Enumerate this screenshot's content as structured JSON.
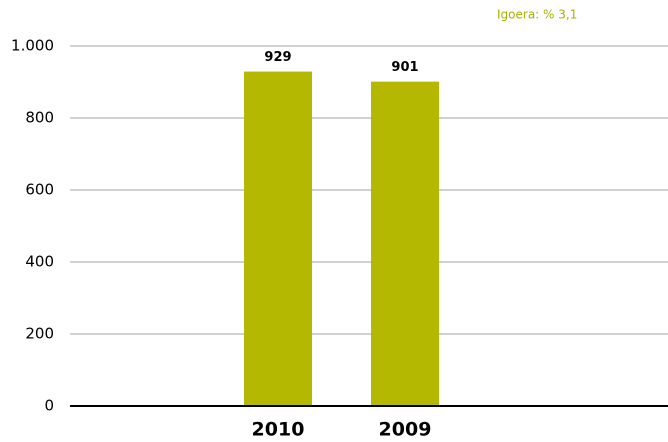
{
  "chart_data": {
    "type": "bar",
    "annotation": "Igoera: % 3,1",
    "categories": [
      "2010",
      "2009"
    ],
    "values": [
      929,
      901
    ],
    "color": "#b5b800",
    "annotation_color": "#a4b300",
    "ylim": [
      0,
      1000
    ],
    "yticks": [
      0,
      200,
      400,
      600,
      800,
      {
        "value": 1000,
        "label": "1.000"
      }
    ],
    "grid": true
  }
}
